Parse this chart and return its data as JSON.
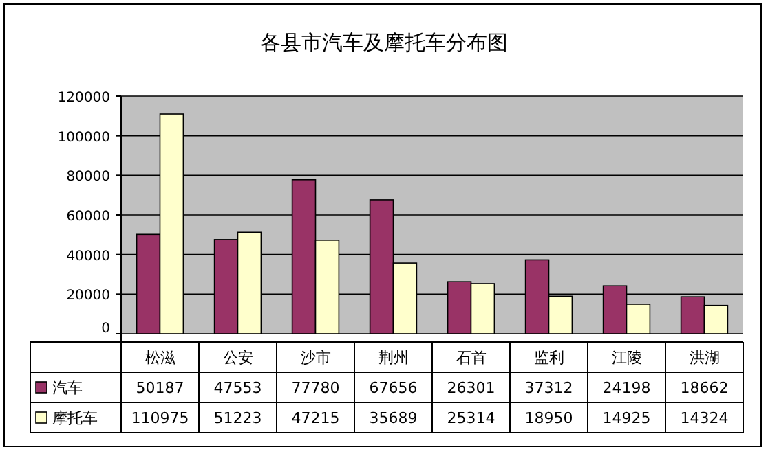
{
  "chart_data": {
    "type": "bar",
    "title": "各县市汽车及摩托车分布图",
    "categories": [
      "松滋",
      "公安",
      "沙市",
      "荆州",
      "石首",
      "监利",
      "江陵",
      "洪湖"
    ],
    "series": [
      {
        "name": "汽车",
        "color": "#993366",
        "values": [
          50187,
          47553,
          77780,
          67656,
          26301,
          37312,
          24198,
          18662
        ]
      },
      {
        "name": "摩托车",
        "color": "#ffffcc",
        "values": [
          110975,
          51223,
          47215,
          35689,
          25314,
          18950,
          14925,
          14324
        ]
      }
    ],
    "ylim": [
      0,
      120000
    ],
    "yticks": [
      0,
      20000,
      40000,
      60000,
      80000,
      100000,
      120000
    ],
    "grid": "y",
    "legend": "bottom",
    "data_labels": true
  }
}
